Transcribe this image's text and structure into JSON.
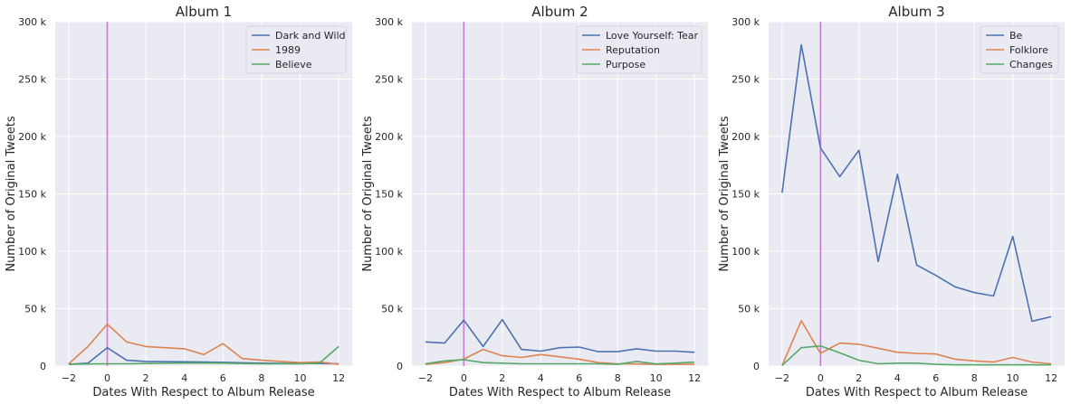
{
  "chart_data": [
    {
      "type": "line",
      "title": "Album 1",
      "xlabel": "Dates With Respect to Album Release",
      "ylabel": "Number of Original Tweets",
      "xlim": [
        -2.7,
        12.7
      ],
      "ylim": [
        0,
        300000
      ],
      "xticks": [
        -2,
        0,
        2,
        4,
        6,
        8,
        10,
        12
      ],
      "xtick_labels": [
        "−2",
        "0",
        "2",
        "4",
        "6",
        "8",
        "10",
        "12"
      ],
      "yticks": [
        0,
        50000,
        100000,
        150000,
        200000,
        250000,
        300000
      ],
      "ytick_labels": [
        "0",
        "50 k",
        "100 k",
        "150 k",
        "200 k",
        "250 k",
        "300 k"
      ],
      "vline": 0,
      "legend_position": "upper right",
      "x": [
        -2,
        -1,
        0,
        1,
        2,
        3,
        4,
        5,
        6,
        7,
        8,
        9,
        10,
        11,
        12
      ],
      "series": [
        {
          "name": "Dark and Wild",
          "color": "#4c72b0",
          "values": [
            1500,
            2500,
            16000,
            5000,
            4000,
            3800,
            3700,
            3500,
            3200,
            2800,
            2500,
            2400,
            2300,
            2200,
            2000
          ]
        },
        {
          "name": "1989",
          "color": "#dd8452",
          "values": [
            2000,
            17000,
            36500,
            21000,
            17000,
            16000,
            15000,
            10000,
            19500,
            6500,
            5000,
            4000,
            3000,
            3500,
            1500
          ]
        },
        {
          "name": "Believe",
          "color": "#55a868",
          "values": [
            1500,
            1800,
            2000,
            2000,
            2200,
            2400,
            2600,
            2600,
            2500,
            2200,
            2000,
            2000,
            2000,
            2500,
            17000
          ]
        }
      ]
    },
    {
      "type": "line",
      "title": "Album 2",
      "xlabel": "Dates With Respect to Album Release",
      "ylabel": "Number of Original Tweets",
      "xlim": [
        -2.7,
        12.7
      ],
      "ylim": [
        0,
        300000
      ],
      "xticks": [
        -2,
        0,
        2,
        4,
        6,
        8,
        10,
        12
      ],
      "xtick_labels": [
        "−2",
        "0",
        "2",
        "4",
        "6",
        "8",
        "10",
        "12"
      ],
      "yticks": [
        0,
        50000,
        100000,
        150000,
        200000,
        250000,
        300000
      ],
      "ytick_labels": [
        "0",
        "50 k",
        "100 k",
        "150 k",
        "200 k",
        "250 k",
        "300 k"
      ],
      "vline": 0,
      "legend_position": "upper right",
      "x": [
        -2,
        -1,
        0,
        1,
        2,
        3,
        4,
        5,
        6,
        7,
        8,
        9,
        10,
        11,
        12
      ],
      "series": [
        {
          "name": "Love Yourself: Tear",
          "color": "#4c72b0",
          "values": [
            21000,
            20000,
            40000,
            17000,
            40500,
            14500,
            13000,
            16000,
            16500,
            12500,
            12500,
            15000,
            13000,
            13000,
            12000
          ]
        },
        {
          "name": "Reputation",
          "color": "#dd8452",
          "values": [
            1500,
            3000,
            6000,
            14500,
            9000,
            7500,
            10000,
            8000,
            6000,
            3000,
            2000,
            1800,
            1500,
            1500,
            1500
          ]
        },
        {
          "name": "Purpose",
          "color": "#55a868",
          "values": [
            2000,
            4500,
            5500,
            3000,
            2500,
            2000,
            2000,
            2000,
            2000,
            2000,
            1500,
            4000,
            1800,
            2500,
            3500
          ]
        }
      ]
    },
    {
      "type": "line",
      "title": "Album 3",
      "xlabel": "Dates With Respect to Album Release",
      "ylabel": "Number of Original Tweets",
      "xlim": [
        -2.7,
        12.7
      ],
      "ylim": [
        0,
        300000
      ],
      "xticks": [
        -2,
        0,
        2,
        4,
        6,
        8,
        10,
        12
      ],
      "xtick_labels": [
        "−2",
        "0",
        "2",
        "4",
        "6",
        "8",
        "10",
        "12"
      ],
      "yticks": [
        0,
        50000,
        100000,
        150000,
        200000,
        250000,
        300000
      ],
      "ytick_labels": [
        "0",
        "50 k",
        "100 k",
        "150 k",
        "200 k",
        "250 k",
        "300 k"
      ],
      "vline": 0,
      "legend_position": "upper right",
      "x": [
        -2,
        -1,
        0,
        1,
        2,
        3,
        4,
        5,
        6,
        7,
        8,
        9,
        10,
        11,
        12
      ],
      "series": [
        {
          "name": "Be",
          "color": "#4c72b0",
          "values": [
            151000,
            280000,
            190000,
            165000,
            188000,
            91000,
            167000,
            88000,
            79000,
            69000,
            64000,
            61000,
            113000,
            39000,
            43000
          ]
        },
        {
          "name": "Folklore",
          "color": "#dd8452",
          "values": [
            500,
            39500,
            11000,
            20000,
            19000,
            15500,
            12000,
            11000,
            10500,
            6000,
            4500,
            3500,
            7500,
            3500,
            2000
          ]
        },
        {
          "name": "Changes",
          "color": "#55a868",
          "values": [
            500,
            16000,
            17500,
            11500,
            5000,
            2000,
            2500,
            2500,
            1500,
            1000,
            1000,
            1000,
            1000,
            1000,
            1000
          ]
        }
      ]
    }
  ],
  "colors": {
    "axes_bg": "#eaeaf2",
    "grid": "#ffffff",
    "vline": "#c77dcf",
    "text": "#262626"
  }
}
